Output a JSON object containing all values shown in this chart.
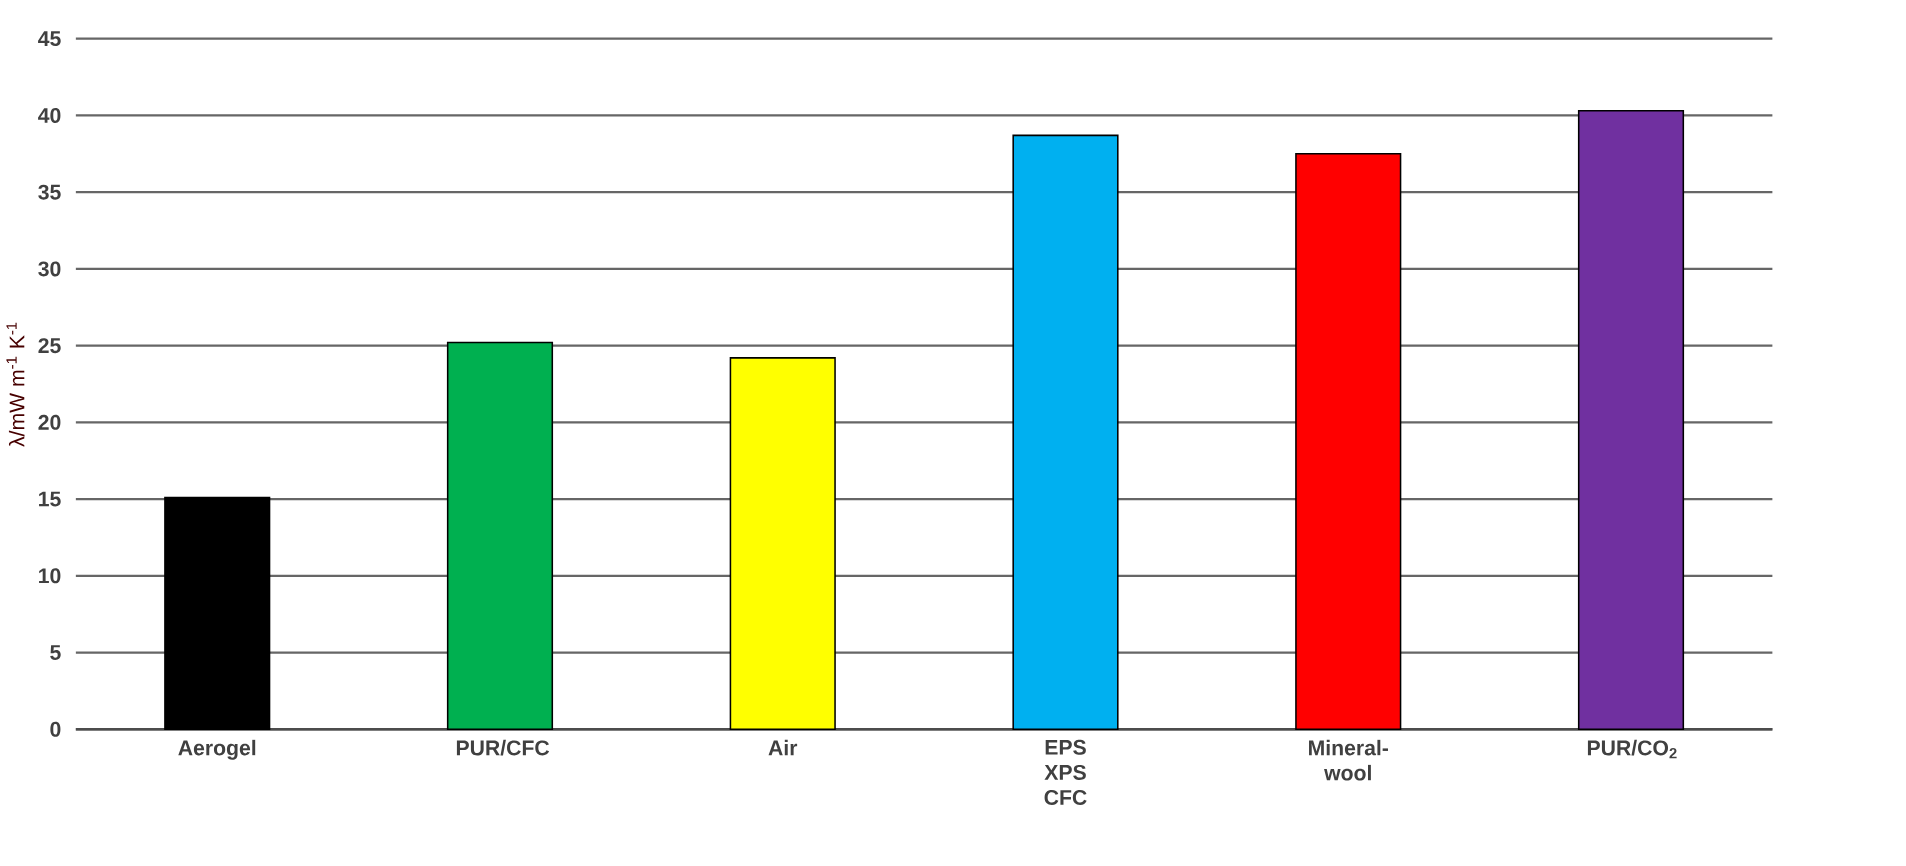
{
  "chart_data": {
    "type": "bar",
    "ylabel": "λ/mW m$^{-1}$ K$^{-1}$",
    "categories": [
      "Aerogel",
      "PUR/CFC",
      "Air",
      "EPS XPS CFC",
      "Mineral-wool",
      "PUR/CO$_{2}$"
    ],
    "values": [
      15.1,
      25.2,
      24.2,
      38.7,
      37.5,
      40.3
    ],
    "colors": [
      "#000000",
      "#00b050",
      "#ffff00",
      "#00b0f0",
      "#ff0000",
      "#7030a0"
    ],
    "ylim": [
      0,
      45
    ],
    "yticks": [
      0,
      5,
      10,
      15,
      20,
      25,
      30,
      35,
      40,
      45
    ],
    "grid": "y"
  }
}
